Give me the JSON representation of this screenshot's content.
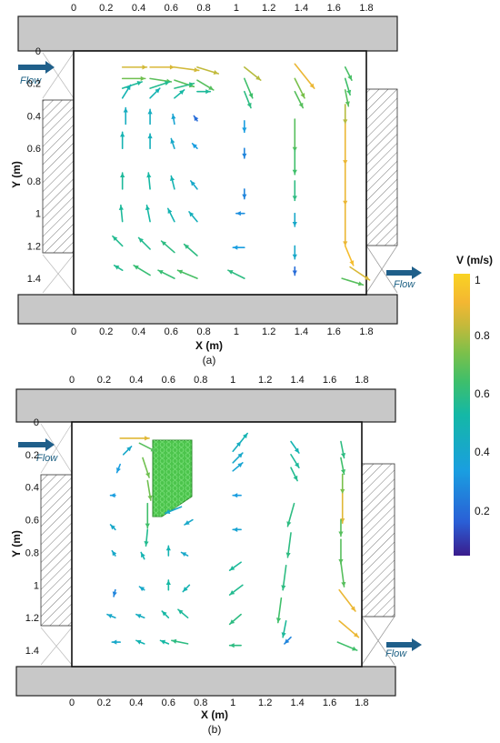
{
  "colorbar": {
    "title": "V (m/s)",
    "ticks": [
      "1",
      "0.8",
      "0.6",
      "0.4",
      "0.2"
    ],
    "colors": [
      "#3a1c8c",
      "#2a5fd6",
      "#1a9ee0",
      "#14b8a6",
      "#3fbf6a",
      "#7cc04a",
      "#c7b93a",
      "#f4b732",
      "#f9d322"
    ]
  },
  "panels": [
    {
      "x_label": "X (m)",
      "y_label": "Y (m)",
      "caption": "(a)",
      "x_ticks": [
        "0",
        "0.2",
        "0.4",
        "0.6",
        "0.8",
        "1",
        "1.2",
        "1.4",
        "1.6",
        "1.8"
      ],
      "y_ticks": [
        "0",
        "0.2",
        "0.4",
        "0.6",
        "0.8",
        "1",
        "1.2",
        "1.4"
      ],
      "inlet_label": "Flow",
      "outlet_label": "Flow",
      "vectors": [
        {
          "x": 0.3,
          "y": 0.1,
          "dx": 0.15,
          "dy": 0.0,
          "v": 0.78
        },
        {
          "x": 0.47,
          "y": 0.1,
          "dx": 0.15,
          "dy": 0.0,
          "v": 0.8
        },
        {
          "x": 0.62,
          "y": 0.1,
          "dx": 0.15,
          "dy": 0.02,
          "v": 0.78
        },
        {
          "x": 0.76,
          "y": 0.1,
          "dx": 0.13,
          "dy": 0.04,
          "v": 0.74
        },
        {
          "x": 1.05,
          "y": 0.1,
          "dx": 0.1,
          "dy": 0.08,
          "v": 0.72
        },
        {
          "x": 1.36,
          "y": 0.08,
          "dx": 0.12,
          "dy": 0.15,
          "v": 0.85
        },
        {
          "x": 1.67,
          "y": 0.1,
          "dx": 0.04,
          "dy": 0.08,
          "v": 0.52
        },
        {
          "x": 0.3,
          "y": 0.17,
          "dx": 0.14,
          "dy": 0.0,
          "v": 0.6
        },
        {
          "x": 0.47,
          "y": 0.17,
          "dx": 0.13,
          "dy": 0.02,
          "v": 0.56
        },
        {
          "x": 0.62,
          "y": 0.18,
          "dx": 0.12,
          "dy": 0.04,
          "v": 0.56
        },
        {
          "x": 0.76,
          "y": 0.18,
          "dx": 0.1,
          "dy": 0.06,
          "v": 0.55
        },
        {
          "x": 0.3,
          "y": 0.23,
          "dx": 0.12,
          "dy": -0.04,
          "v": 0.4
        },
        {
          "x": 0.47,
          "y": 0.23,
          "dx": 0.12,
          "dy": -0.04,
          "v": 0.42
        },
        {
          "x": 0.62,
          "y": 0.23,
          "dx": 0.12,
          "dy": -0.03,
          "v": 0.44
        },
        {
          "x": 0.76,
          "y": 0.25,
          "dx": 0.08,
          "dy": 0.0,
          "v": 0.4
        },
        {
          "x": 0.3,
          "y": 0.29,
          "dx": 0.05,
          "dy": -0.08,
          "v": 0.35
        },
        {
          "x": 0.47,
          "y": 0.29,
          "dx": 0.06,
          "dy": -0.06,
          "v": 0.35
        },
        {
          "x": 0.62,
          "y": 0.29,
          "dx": 0.06,
          "dy": -0.05,
          "v": 0.38
        },
        {
          "x": 1.05,
          "y": 0.17,
          "dx": 0.05,
          "dy": 0.12,
          "v": 0.5
        },
        {
          "x": 1.05,
          "y": 0.25,
          "dx": 0.04,
          "dy": 0.1,
          "v": 0.45
        },
        {
          "x": 1.36,
          "y": 0.17,
          "dx": 0.06,
          "dy": 0.12,
          "v": 0.62
        },
        {
          "x": 1.36,
          "y": 0.25,
          "dx": 0.05,
          "dy": 0.1,
          "v": 0.55
        },
        {
          "x": 1.67,
          "y": 0.17,
          "dx": 0.03,
          "dy": 0.1,
          "v": 0.5
        },
        {
          "x": 1.67,
          "y": 0.24,
          "dx": 0.02,
          "dy": 0.1,
          "v": 0.55
        },
        {
          "x": 1.67,
          "y": 0.33,
          "dx": 0.0,
          "dy": 0.12,
          "v": 0.72
        },
        {
          "x": 0.32,
          "y": 0.45,
          "dx": 0.0,
          "dy": -0.1,
          "v": 0.32
        },
        {
          "x": 0.47,
          "y": 0.45,
          "dx": 0.0,
          "dy": -0.09,
          "v": 0.32
        },
        {
          "x": 0.62,
          "y": 0.45,
          "dx": -0.01,
          "dy": -0.06,
          "v": 0.28
        },
        {
          "x": 0.76,
          "y": 0.43,
          "dx": -0.02,
          "dy": -0.03,
          "v": 0.15
        },
        {
          "x": 1.05,
          "y": 0.43,
          "dx": 0.0,
          "dy": 0.07,
          "v": 0.25
        },
        {
          "x": 1.36,
          "y": 0.42,
          "dx": 0.0,
          "dy": 0.2,
          "v": 0.55
        },
        {
          "x": 1.67,
          "y": 0.45,
          "dx": 0.0,
          "dy": 0.25,
          "v": 0.85
        },
        {
          "x": 0.3,
          "y": 0.6,
          "dx": 0.0,
          "dy": -0.1,
          "v": 0.35
        },
        {
          "x": 0.47,
          "y": 0.6,
          "dx": 0.0,
          "dy": -0.09,
          "v": 0.33
        },
        {
          "x": 0.62,
          "y": 0.6,
          "dx": -0.02,
          "dy": -0.06,
          "v": 0.3
        },
        {
          "x": 0.76,
          "y": 0.6,
          "dx": -0.03,
          "dy": -0.03,
          "v": 0.25
        },
        {
          "x": 1.05,
          "y": 0.6,
          "dx": 0.0,
          "dy": 0.06,
          "v": 0.2
        },
        {
          "x": 1.36,
          "y": 0.6,
          "dx": 0.0,
          "dy": 0.16,
          "v": 0.5
        },
        {
          "x": 1.67,
          "y": 0.7,
          "dx": 0.0,
          "dy": 0.25,
          "v": 0.85
        },
        {
          "x": 0.3,
          "y": 0.85,
          "dx": 0.0,
          "dy": -0.1,
          "v": 0.4
        },
        {
          "x": 0.47,
          "y": 0.85,
          "dx": -0.01,
          "dy": -0.1,
          "v": 0.38
        },
        {
          "x": 0.62,
          "y": 0.85,
          "dx": -0.02,
          "dy": -0.08,
          "v": 0.35
        },
        {
          "x": 0.76,
          "y": 0.85,
          "dx": -0.04,
          "dy": -0.05,
          "v": 0.3
        },
        {
          "x": 1.05,
          "y": 0.85,
          "dx": 0.0,
          "dy": 0.06,
          "v": 0.2
        },
        {
          "x": 1.36,
          "y": 0.8,
          "dx": 0.0,
          "dy": 0.12,
          "v": 0.45
        },
        {
          "x": 1.67,
          "y": 0.95,
          "dx": 0.0,
          "dy": 0.25,
          "v": 0.85
        },
        {
          "x": 0.3,
          "y": 1.05,
          "dx": -0.01,
          "dy": -0.1,
          "v": 0.4
        },
        {
          "x": 0.47,
          "y": 1.05,
          "dx": -0.02,
          "dy": -0.1,
          "v": 0.38
        },
        {
          "x": 0.62,
          "y": 1.05,
          "dx": -0.04,
          "dy": -0.08,
          "v": 0.35
        },
        {
          "x": 0.76,
          "y": 1.05,
          "dx": -0.05,
          "dy": -0.06,
          "v": 0.33
        },
        {
          "x": 1.05,
          "y": 1.0,
          "dx": -0.05,
          "dy": 0.0,
          "v": 0.22
        },
        {
          "x": 1.36,
          "y": 1.0,
          "dx": 0.0,
          "dy": 0.08,
          "v": 0.3
        },
        {
          "x": 1.67,
          "y": 1.2,
          "dx": 0.05,
          "dy": 0.12,
          "v": 0.9
        },
        {
          "x": 0.3,
          "y": 1.2,
          "dx": -0.06,
          "dy": -0.06,
          "v": 0.42
        },
        {
          "x": 0.47,
          "y": 1.22,
          "dx": -0.07,
          "dy": -0.07,
          "v": 0.42
        },
        {
          "x": 0.62,
          "y": 1.24,
          "dx": -0.08,
          "dy": -0.07,
          "v": 0.45
        },
        {
          "x": 0.76,
          "y": 1.26,
          "dx": -0.08,
          "dy": -0.07,
          "v": 0.45
        },
        {
          "x": 1.05,
          "y": 1.21,
          "dx": -0.07,
          "dy": 0.0,
          "v": 0.25
        },
        {
          "x": 1.36,
          "y": 1.2,
          "dx": 0.0,
          "dy": 0.08,
          "v": 0.3
        },
        {
          "x": 1.7,
          "y": 1.33,
          "dx": 0.12,
          "dy": 0.08,
          "v": 0.8
        },
        {
          "x": 0.3,
          "y": 1.35,
          "dx": -0.05,
          "dy": -0.03,
          "v": 0.42
        },
        {
          "x": 0.47,
          "y": 1.38,
          "dx": -0.1,
          "dy": -0.06,
          "v": 0.48
        },
        {
          "x": 0.62,
          "y": 1.4,
          "dx": -0.1,
          "dy": -0.05,
          "v": 0.48
        },
        {
          "x": 0.76,
          "y": 1.4,
          "dx": -0.12,
          "dy": -0.05,
          "v": 0.52
        },
        {
          "x": 1.05,
          "y": 1.4,
          "dx": -0.1,
          "dy": -0.05,
          "v": 0.45
        },
        {
          "x": 1.36,
          "y": 1.33,
          "dx": 0.0,
          "dy": 0.05,
          "v": 0.15
        },
        {
          "x": 1.65,
          "y": 1.4,
          "dx": 0.13,
          "dy": 0.04,
          "v": 0.55
        }
      ]
    },
    {
      "x_label": "X (m)",
      "y_label": "Y (m)",
      "caption": "(b)",
      "x_ticks": [
        "0",
        "0.2",
        "0.4",
        "0.6",
        "0.8",
        "1",
        "1.2",
        "1.4",
        "1.6",
        "1.8"
      ],
      "y_ticks": [
        "0",
        "0.2",
        "0.4",
        "0.6",
        "0.8",
        "1",
        "1.2",
        "1.4"
      ],
      "inlet_label": "Flow",
      "outlet_label": "Flow",
      "vectors": [
        {
          "x": 0.3,
          "y": 0.1,
          "dx": 0.18,
          "dy": 0.0,
          "v": 0.82
        },
        {
          "x": 0.42,
          "y": 0.13,
          "dx": 0.1,
          "dy": 0.05,
          "v": 0.55
        },
        {
          "x": 0.32,
          "y": 0.2,
          "dx": 0.05,
          "dy": -0.05,
          "v": 0.3
        },
        {
          "x": 0.3,
          "y": 0.26,
          "dx": -0.02,
          "dy": 0.05,
          "v": 0.25
        },
        {
          "x": 0.44,
          "y": 0.22,
          "dx": 0.04,
          "dy": 0.12,
          "v": 0.6
        },
        {
          "x": 0.47,
          "y": 0.36,
          "dx": 0.02,
          "dy": 0.12,
          "v": 0.6
        },
        {
          "x": 1.05,
          "y": 0.12,
          "dx": 0.04,
          "dy": -0.05,
          "v": 0.35
        },
        {
          "x": 1.0,
          "y": 0.18,
          "dx": 0.05,
          "dy": -0.06,
          "v": 0.32
        },
        {
          "x": 1.0,
          "y": 0.25,
          "dx": 0.06,
          "dy": -0.06,
          "v": 0.3
        },
        {
          "x": 1.0,
          "y": 0.3,
          "dx": 0.06,
          "dy": -0.05,
          "v": 0.28
        },
        {
          "x": 1.36,
          "y": 0.12,
          "dx": 0.05,
          "dy": 0.07,
          "v": 0.35
        },
        {
          "x": 1.36,
          "y": 0.2,
          "dx": 0.05,
          "dy": 0.08,
          "v": 0.4
        },
        {
          "x": 1.36,
          "y": 0.28,
          "dx": 0.04,
          "dy": 0.08,
          "v": 0.42
        },
        {
          "x": 1.67,
          "y": 0.12,
          "dx": 0.02,
          "dy": 0.1,
          "v": 0.45
        },
        {
          "x": 1.67,
          "y": 0.22,
          "dx": 0.02,
          "dy": 0.1,
          "v": 0.5
        },
        {
          "x": 1.68,
          "y": 0.32,
          "dx": 0.0,
          "dy": 0.12,
          "v": 0.62
        },
        {
          "x": 1.68,
          "y": 0.44,
          "dx": 0.0,
          "dy": 0.18,
          "v": 0.82
        },
        {
          "x": 0.27,
          "y": 0.45,
          "dx": -0.03,
          "dy": 0.0,
          "v": 0.25
        },
        {
          "x": 0.47,
          "y": 0.5,
          "dx": 0.0,
          "dy": 0.15,
          "v": 0.5
        },
        {
          "x": 0.68,
          "y": 0.52,
          "dx": -0.1,
          "dy": 0.04,
          "v": 0.3
        },
        {
          "x": 0.75,
          "y": 0.6,
          "dx": -0.05,
          "dy": 0.03,
          "v": 0.3
        },
        {
          "x": 1.05,
          "y": 0.45,
          "dx": -0.05,
          "dy": 0.0,
          "v": 0.25
        },
        {
          "x": 1.38,
          "y": 0.5,
          "dx": -0.04,
          "dy": 0.14,
          "v": 0.45
        },
        {
          "x": 1.67,
          "y": 0.6,
          "dx": 0.0,
          "dy": 0.1,
          "v": 0.55
        },
        {
          "x": 0.27,
          "y": 0.66,
          "dx": -0.03,
          "dy": -0.03,
          "v": 0.3
        },
        {
          "x": 0.47,
          "y": 0.66,
          "dx": -0.01,
          "dy": 0.1,
          "v": 0.42
        },
        {
          "x": 1.05,
          "y": 0.66,
          "dx": -0.05,
          "dy": 0.0,
          "v": 0.28
        },
        {
          "x": 1.36,
          "y": 0.68,
          "dx": -0.02,
          "dy": 0.15,
          "v": 0.45
        },
        {
          "x": 1.67,
          "y": 0.72,
          "dx": 0.0,
          "dy": 0.15,
          "v": 0.55
        },
        {
          "x": 0.27,
          "y": 0.82,
          "dx": -0.02,
          "dy": -0.03,
          "v": 0.3
        },
        {
          "x": 0.45,
          "y": 0.84,
          "dx": -0.02,
          "dy": -0.04,
          "v": 0.35
        },
        {
          "x": 0.6,
          "y": 0.82,
          "dx": 0.0,
          "dy": -0.06,
          "v": 0.35
        },
        {
          "x": 0.72,
          "y": 0.82,
          "dx": -0.04,
          "dy": -0.02,
          "v": 0.3
        },
        {
          "x": 1.05,
          "y": 0.86,
          "dx": -0.07,
          "dy": 0.05,
          "v": 0.4
        },
        {
          "x": 1.33,
          "y": 0.88,
          "dx": -0.02,
          "dy": 0.15,
          "v": 0.45
        },
        {
          "x": 1.67,
          "y": 0.86,
          "dx": 0.02,
          "dy": 0.15,
          "v": 0.55
        },
        {
          "x": 0.27,
          "y": 1.03,
          "dx": -0.01,
          "dy": 0.04,
          "v": 0.2
        },
        {
          "x": 0.45,
          "y": 1.03,
          "dx": -0.03,
          "dy": -0.02,
          "v": 0.3
        },
        {
          "x": 0.6,
          "y": 1.03,
          "dx": 0.0,
          "dy": -0.06,
          "v": 0.38
        },
        {
          "x": 0.73,
          "y": 1.0,
          "dx": -0.04,
          "dy": 0.04,
          "v": 0.35
        },
        {
          "x": 1.06,
          "y": 1.0,
          "dx": -0.08,
          "dy": 0.06,
          "v": 0.42
        },
        {
          "x": 1.3,
          "y": 1.08,
          "dx": -0.02,
          "dy": 0.15,
          "v": 0.5
        },
        {
          "x": 1.66,
          "y": 1.03,
          "dx": 0.1,
          "dy": 0.13,
          "v": 0.85
        },
        {
          "x": 0.27,
          "y": 1.2,
          "dx": -0.05,
          "dy": -0.02,
          "v": 0.3
        },
        {
          "x": 0.45,
          "y": 1.2,
          "dx": -0.05,
          "dy": -0.02,
          "v": 0.32
        },
        {
          "x": 0.6,
          "y": 1.2,
          "dx": -0.04,
          "dy": -0.04,
          "v": 0.38
        },
        {
          "x": 0.72,
          "y": 1.2,
          "dx": -0.06,
          "dy": -0.05,
          "v": 0.4
        },
        {
          "x": 1.05,
          "y": 1.18,
          "dx": -0.07,
          "dy": 0.06,
          "v": 0.45
        },
        {
          "x": 1.33,
          "y": 1.22,
          "dx": -0.02,
          "dy": 0.1,
          "v": 0.4
        },
        {
          "x": 1.66,
          "y": 1.22,
          "dx": 0.12,
          "dy": 0.1,
          "v": 0.85
        },
        {
          "x": 0.3,
          "y": 1.35,
          "dx": -0.05,
          "dy": 0.0,
          "v": 0.3
        },
        {
          "x": 0.45,
          "y": 1.36,
          "dx": -0.05,
          "dy": -0.02,
          "v": 0.35
        },
        {
          "x": 0.6,
          "y": 1.36,
          "dx": -0.05,
          "dy": -0.02,
          "v": 0.38
        },
        {
          "x": 0.72,
          "y": 1.36,
          "dx": -0.1,
          "dy": -0.02,
          "v": 0.45
        },
        {
          "x": 1.05,
          "y": 1.37,
          "dx": -0.07,
          "dy": 0.0,
          "v": 0.45
        },
        {
          "x": 1.36,
          "y": 1.32,
          "dx": -0.04,
          "dy": 0.04,
          "v": 0.2
        },
        {
          "x": 1.65,
          "y": 1.35,
          "dx": 0.12,
          "dy": 0.05,
          "v": 0.5
        }
      ]
    }
  ]
}
